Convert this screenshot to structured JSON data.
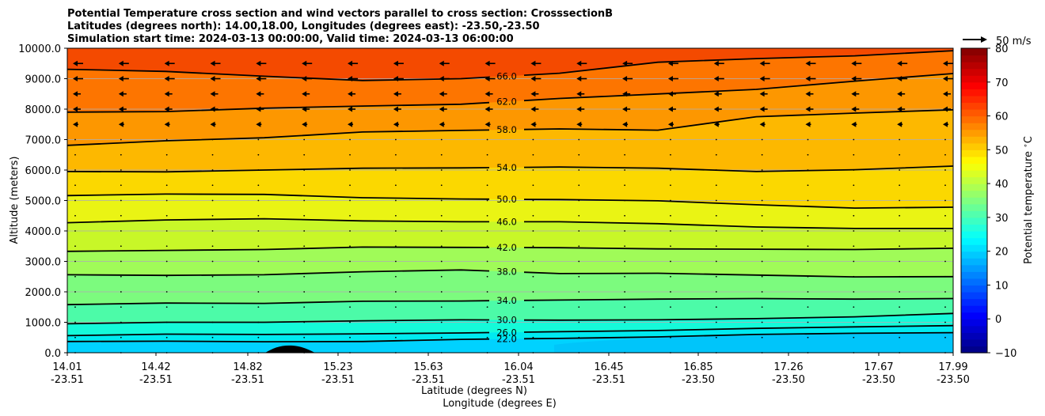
{
  "chart_data": {
    "type": "contour",
    "title": [
      "Potential Temperature cross section and wind vectors parallel to cross section: CrosssectionB",
      "Latitudes (degrees north): 14.00,18.00, Longitudes (degrees east): -23.50,-23.50",
      "Simulation start time: 2024-03-13 00:00:00, Valid time: 2024-03-13 06:00:00"
    ],
    "xlabel": "Latitude (degrees N)",
    "xlabel2": "Longitude (degrees E)",
    "ylabel": "Altitude (meters)",
    "ylim": [
      0,
      10000
    ],
    "yticks": [
      "0.0",
      "1000.0",
      "2000.0",
      "3000.0",
      "4000.0",
      "5000.0",
      "6000.0",
      "7000.0",
      "8000.0",
      "9000.0",
      "10000.0"
    ],
    "xticks": [
      {
        "lat": "14.01",
        "lon": "-23.51"
      },
      {
        "lat": "14.42",
        "lon": "-23.51"
      },
      {
        "lat": "14.82",
        "lon": "-23.51"
      },
      {
        "lat": "15.23",
        "lon": "-23.51"
      },
      {
        "lat": "15.63",
        "lon": "-23.51"
      },
      {
        "lat": "16.04",
        "lon": "-23.51"
      },
      {
        "lat": "16.45",
        "lon": "-23.51"
      },
      {
        "lat": "16.85",
        "lon": "-23.50"
      },
      {
        "lat": "17.26",
        "lon": "-23.50"
      },
      {
        "lat": "17.67",
        "lon": "-23.50"
      },
      {
        "lat": "17.99",
        "lon": "-23.50"
      }
    ],
    "colorbar": {
      "label": "Potential temperature $^\\circ$C",
      "ticks": [
        "−10",
        "0",
        "10",
        "20",
        "30",
        "40",
        "50",
        "60",
        "70",
        "80"
      ],
      "range": [
        -10,
        80
      ],
      "colormap": "jet"
    },
    "quiver_key": "50 m/s",
    "contours": [
      {
        "level": 22,
        "label": "22.0",
        "heights": [
          370,
          380,
          360,
          370,
          440,
          470,
          520,
          600,
          640,
          660
        ]
      },
      {
        "level": 26,
        "label": "26.0",
        "heights": [
          560,
          610,
          600,
          620,
          650,
          690,
          730,
          800,
          850,
          890
        ]
      },
      {
        "level": 30,
        "label": "30.0",
        "heights": [
          950,
          1000,
          1000,
          1050,
          1080,
          1070,
          1080,
          1120,
          1180,
          1290
        ]
      },
      {
        "level": 34,
        "label": "34.0",
        "heights": [
          1580,
          1630,
          1620,
          1690,
          1700,
          1730,
          1760,
          1780,
          1760,
          1780
        ]
      },
      {
        "level": 38,
        "label": "38.0",
        "heights": [
          2560,
          2540,
          2560,
          2660,
          2720,
          2600,
          2610,
          2550,
          2490,
          2500
        ]
      },
      {
        "level": 42,
        "label": "42.0",
        "heights": [
          3330,
          3360,
          3390,
          3470,
          3460,
          3450,
          3410,
          3400,
          3390,
          3430
        ]
      },
      {
        "level": 46,
        "label": "46.0",
        "heights": [
          4270,
          4360,
          4400,
          4330,
          4300,
          4300,
          4240,
          4130,
          4080,
          4080
        ]
      },
      {
        "level": 50,
        "label": "50.0",
        "heights": [
          5160,
          5210,
          5200,
          5090,
          5050,
          5030,
          4990,
          4860,
          4750,
          4780
        ]
      },
      {
        "level": 54,
        "label": "54.0",
        "heights": [
          5950,
          5940,
          6000,
          6060,
          6070,
          6100,
          6060,
          5950,
          6010,
          6130
        ]
      },
      {
        "level": 58,
        "label": "58.0",
        "heights": [
          6810,
          6960,
          7060,
          7250,
          7300,
          7350,
          7310,
          7750,
          7870,
          7980
        ]
      },
      {
        "level": 62,
        "label": "62.0",
        "heights": [
          7900,
          7920,
          8030,
          8100,
          8160,
          8350,
          8500,
          8650,
          8920,
          9170
        ]
      },
      {
        "level": 66,
        "label": "66.0",
        "heights": [
          9310,
          9240,
          9080,
          8940,
          9000,
          9180,
          9540,
          9660,
          9750,
          9920
        ]
      }
    ],
    "band_colors": [
      {
        "min": 18,
        "color": "#00d2ff"
      },
      {
        "min": 22,
        "color": "#00eaf0"
      },
      {
        "min": 26,
        "color": "#15fad9"
      },
      {
        "min": 30,
        "color": "#4cfba8"
      },
      {
        "min": 34,
        "color": "#7cfb7e"
      },
      {
        "min": 38,
        "color": "#a0fb58"
      },
      {
        "min": 42,
        "color": "#c8f728"
      },
      {
        "min": 46,
        "color": "#eaf414"
      },
      {
        "min": 50,
        "color": "#fbd800"
      },
      {
        "min": 54,
        "color": "#fdb800"
      },
      {
        "min": 58,
        "color": "#fd9700"
      },
      {
        "min": 62,
        "color": "#fd7500"
      },
      {
        "min": 66,
        "color": "#f44a00"
      }
    ]
  }
}
